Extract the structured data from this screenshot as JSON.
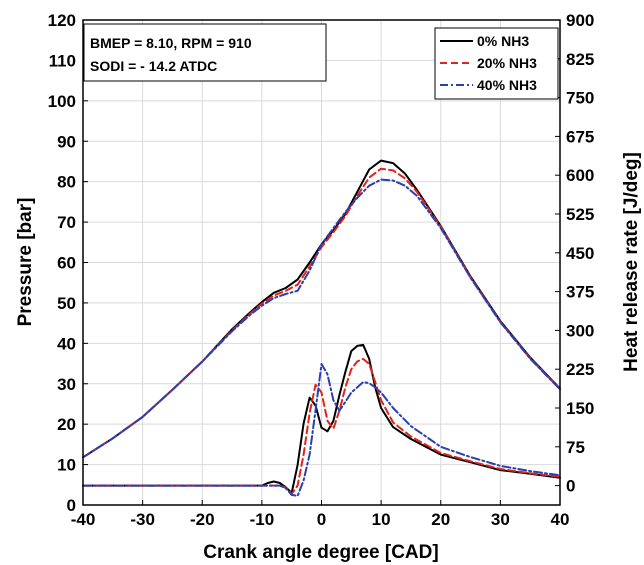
{
  "chart_data": {
    "type": "line",
    "xlabel": "Crank angle degree [CAD]",
    "ylabel": "Pressure [bar]",
    "y2label": "Heat release rate [J/deg]",
    "xlim": [
      -40,
      40
    ],
    "ylim": [
      0,
      120
    ],
    "y2lim": [
      -37.5,
      900
    ],
    "xticks": [
      "-40",
      "-30",
      "-20",
      "-10",
      "0",
      "10",
      "20",
      "30",
      "40"
    ],
    "yticks": [
      "0",
      "10",
      "20",
      "30",
      "40",
      "50",
      "60",
      "70",
      "80",
      "90",
      "100",
      "110",
      "120"
    ],
    "y2ticks": [
      "0",
      "75",
      "150",
      "225",
      "300",
      "375",
      "450",
      "525",
      "600",
      "675",
      "750",
      "825",
      "900"
    ],
    "grid": true,
    "legend_position": "top-right",
    "annotation": [
      "BMEP = 8.10, RPM = 910",
      "SODI = - 14.2 ATDC"
    ],
    "colors": {
      "s0": "#000000",
      "s20": "#e3221b",
      "s40": "#2a3fb0"
    },
    "series": [
      {
        "name": "0% NH3",
        "axis": "left",
        "style": "solid",
        "color": "#000000",
        "x": [
          -40,
          -35,
          -30,
          -25,
          -20,
          -15,
          -12,
          -10,
          -8,
          -6,
          -4,
          -2,
          0,
          2,
          4,
          6,
          8,
          10,
          12,
          14,
          16,
          20,
          25,
          30,
          35,
          40
        ],
        "y": [
          11.8,
          16.5,
          21.8,
          28.5,
          35.5,
          43.5,
          47.6,
          50.2,
          52.5,
          53.7,
          55.8,
          60.0,
          64.5,
          68.0,
          72.0,
          77.5,
          83.0,
          85.2,
          84.6,
          82.0,
          78.0,
          69.0,
          56.5,
          45.5,
          36.5,
          28.8
        ]
      },
      {
        "name": "20% NH3",
        "axis": "left",
        "style": "dashed",
        "color": "#e3221b",
        "x": [
          -40,
          -35,
          -30,
          -25,
          -20,
          -15,
          -12,
          -10,
          -8,
          -6,
          -4,
          -2,
          0,
          2,
          4,
          6,
          8,
          10,
          12,
          14,
          16,
          20,
          25,
          30,
          35,
          40
        ],
        "y": [
          11.8,
          16.5,
          21.8,
          28.5,
          35.5,
          43.2,
          47.3,
          49.8,
          51.8,
          53.0,
          54.5,
          59.0,
          63.8,
          67.5,
          71.5,
          76.5,
          81.0,
          83.2,
          82.8,
          80.8,
          77.5,
          68.8,
          56.3,
          45.3,
          36.3,
          28.7
        ]
      },
      {
        "name": "40% NH3",
        "axis": "left",
        "style": "dashdot",
        "color": "#2a3fb0",
        "x": [
          -40,
          -35,
          -30,
          -25,
          -20,
          -15,
          -12,
          -10,
          -8,
          -6,
          -4,
          -2,
          0,
          2,
          4,
          6,
          8,
          10,
          12,
          14,
          16,
          20,
          25,
          30,
          35,
          40
        ],
        "y": [
          11.8,
          16.5,
          21.8,
          28.5,
          35.5,
          43.0,
          47.0,
          49.3,
          51.2,
          52.2,
          53.0,
          58.0,
          64.5,
          68.5,
          72.5,
          76.0,
          79.0,
          80.5,
          80.3,
          79.0,
          76.5,
          68.5,
          56.2,
          45.2,
          36.2,
          28.6
        ]
      },
      {
        "name": "0% NH3",
        "axis": "right",
        "style": "solid",
        "color": "#000000",
        "x": [
          -40,
          -20,
          -12,
          -10,
          -9,
          -8,
          -7,
          -6,
          -5,
          -4,
          -3,
          -2,
          -1,
          0,
          1,
          2,
          3,
          4,
          5,
          6,
          7,
          8,
          9,
          10,
          12,
          15,
          20,
          25,
          30,
          35,
          40
        ],
        "y": [
          0,
          0,
          0,
          0,
          5,
          8,
          5,
          -3,
          -14,
          40,
          120,
          170,
          155,
          112,
          105,
          125,
          175,
          220,
          260,
          270,
          272,
          245,
          190,
          150,
          113,
          90,
          60,
          45,
          30,
          23,
          15
        ]
      },
      {
        "name": "20% NH3",
        "axis": "right",
        "style": "dashed",
        "color": "#e3221b",
        "x": [
          -40,
          -20,
          -12,
          -10,
          -9,
          -8,
          -7,
          -6,
          -5,
          -4,
          -3,
          -2,
          -1,
          0,
          1,
          2,
          3,
          4,
          5,
          6,
          7,
          8,
          9,
          10,
          12,
          15,
          20,
          25,
          30,
          35,
          40
        ],
        "y": [
          0,
          0,
          0,
          0,
          0,
          0,
          0,
          -4,
          -16,
          0,
          60,
          140,
          195,
          180,
          125,
          110,
          145,
          190,
          225,
          240,
          245,
          235,
          200,
          165,
          122,
          95,
          63,
          47,
          32,
          24,
          17
        ]
      },
      {
        "name": "40% NH3",
        "axis": "right",
        "style": "dashdot",
        "color": "#2a3fb0",
        "x": [
          -40,
          -20,
          -12,
          -10,
          -9,
          -8,
          -7,
          -6,
          -5,
          -4,
          -3,
          -2,
          -1,
          0,
          1,
          2,
          3,
          4,
          5,
          6,
          7,
          8,
          9,
          10,
          12,
          15,
          20,
          25,
          30,
          35,
          40
        ],
        "y": [
          0,
          0,
          0,
          0,
          0,
          0,
          0,
          -5,
          -18,
          -20,
          10,
          60,
          145,
          235,
          215,
          165,
          145,
          162,
          180,
          190,
          200,
          198,
          190,
          180,
          150,
          115,
          75,
          55,
          38,
          28,
          20
        ]
      }
    ]
  }
}
